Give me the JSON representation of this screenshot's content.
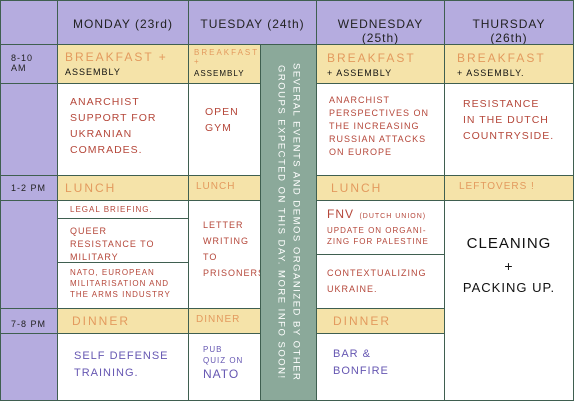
{
  "days": [
    "MONDAY (23rd)",
    "TUESDAY (24th)",
    "WEDNESDAY (25th)",
    "THURSDAY (26th)"
  ],
  "times": [
    "8-10 AM",
    "1-2 PM",
    "7-8 PM"
  ],
  "monday": {
    "breakfast": "BREAKFAST +",
    "assembly": "ASSEMBLY",
    "morning": "ANARCHIST SUPPORT FOR UKRANIAN COMRADES.",
    "lunch": "LUNCH",
    "afternoon": [
      "LEGAL BRIEFING.",
      "QUEER RESISTANCE TO MILITARY PINKWASHING.",
      "NATO, EUROPEAN MILITARISATION AND THE ARMS INDUSTRY"
    ],
    "dinner": "DINNER",
    "evening": "SELF DEFENSE TRAINING."
  },
  "tuesday": {
    "breakfast": "BREAKFAST +",
    "assembly": "ASSEMBLY",
    "morning": "OPEN GYM",
    "lunch": "LUNCH",
    "afternoon": "LETTER WRITING TO PRISONERS",
    "dinner": "DINNER",
    "evening_note": "PUB QUIZ ON",
    "evening": "NATO"
  },
  "notice": "SEVERAL EVENTS AND DEMOS ORGANIZED BY OTHER GROUPS EXPECTED ON THIS DAY. MORE INFO SOON!",
  "wednesday": {
    "breakfast": "BREAKFAST",
    "assembly": "+ ASSEMBLY",
    "morning": "ANARCHIST PERSPECTIVES ON THE INCREASING RUSSIAN ATTACKS ON EUROPE",
    "lunch": "LUNCH",
    "afternoon_title": "FNV",
    "afternoon_note": "(DUTCH UNION)",
    "afternoon": [
      "UPDATE ON ORGANI-ZING FOR PALESTINE",
      "CONTEXTUALIZING UKRAINE."
    ],
    "dinner": "DINNER",
    "evening": "BAR & BONFIRE"
  },
  "thursday": {
    "breakfast": "BREAKFAST",
    "assembly": "+ ASSEMBLY.",
    "morning": "RESISTANCE IN THE DUTCH COUNTRYSIDE.",
    "lunch": "LEFTOVERS !",
    "afternoon": [
      "CLEANING",
      "+",
      "PACKING UP."
    ]
  }
}
